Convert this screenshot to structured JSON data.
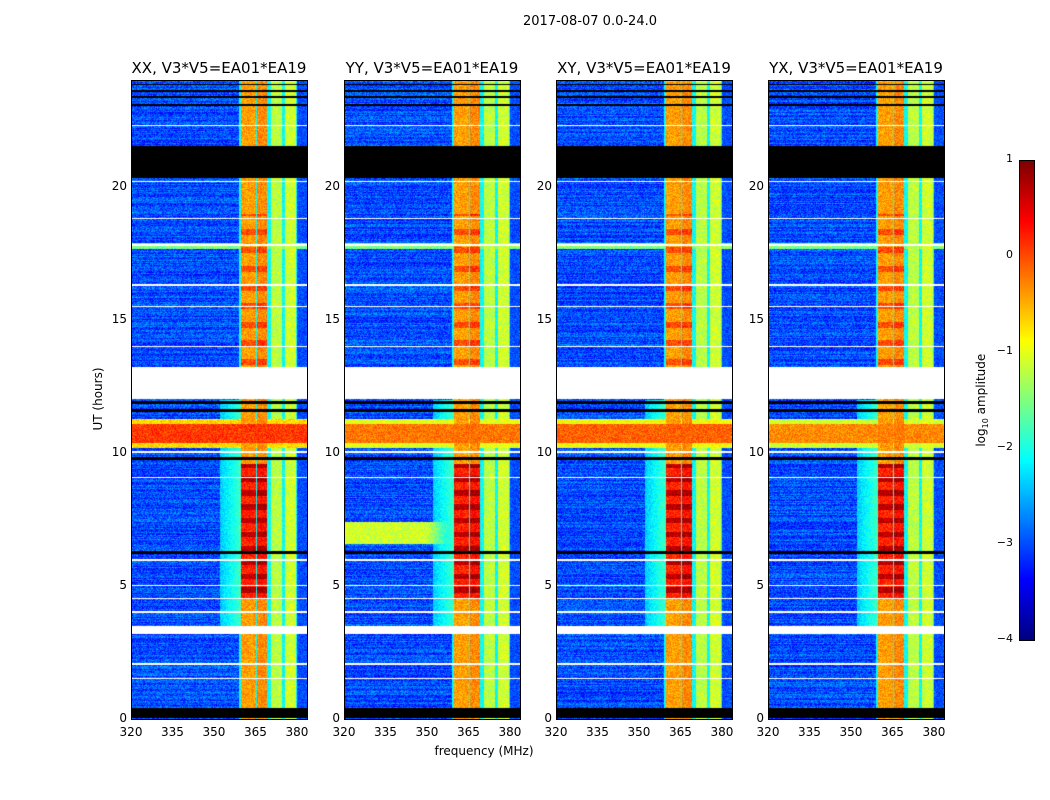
{
  "chart_data": {
    "type": "heatmap",
    "title": "2017-08-07 0.0-24.0",
    "xlabel": "frequency (MHz)",
    "ylabel": "UT (hours)",
    "xlim": [
      320,
      384
    ],
    "ylim": [
      0,
      24
    ],
    "xticks": [
      "320",
      "335",
      "350",
      "365",
      "380"
    ],
    "xtick_values": [
      320,
      335,
      350,
      365,
      380
    ],
    "yticks": [
      "0",
      "5",
      "10",
      "15",
      "20"
    ],
    "ytick_values": [
      0,
      5,
      10,
      15,
      20
    ],
    "colormap": "jet",
    "colorbar": {
      "label": "log10 amplitude",
      "label_main": "log",
      "label_sub": "10",
      "label_rest": " amplitude",
      "range": [
        -4,
        1
      ],
      "ticks": [
        "1",
        "0",
        "−1",
        "−2",
        "−3",
        "−4"
      ],
      "tick_values": [
        1,
        0,
        -1,
        -2,
        -3,
        -4
      ]
    },
    "panels": [
      {
        "title": "XX, V3*V5=EA01*EA19",
        "rfi_strength": 0.7,
        "yy_band": false
      },
      {
        "title": "YY, V3*V5=EA01*EA19",
        "rfi_strength": 0.4,
        "yy_band": true
      },
      {
        "title": "XY, V3*V5=EA01*EA19",
        "rfi_strength": 0.5,
        "yy_band": false
      },
      {
        "title": "YX, V3*V5=EA01*EA19",
        "rfi_strength": 0.3,
        "yy_band": false
      }
    ],
    "background_level": -3.0,
    "bright_bands_mhz": [
      {
        "range": [
          360.0,
          365.4
        ],
        "level": -0.4
      },
      {
        "range": [
          365.8,
          369.5
        ],
        "level": -0.3
      },
      {
        "range": [
          370.9,
          374.9
        ],
        "level": -1.2
      },
      {
        "range": [
          376.0,
          380.0
        ],
        "level": -1.1
      }
    ],
    "flagged_hours_black": [
      [
        0.05,
        0.4
      ],
      [
        6.2,
        6.32
      ],
      [
        9.75,
        9.85
      ],
      [
        11.55,
        11.65
      ],
      [
        11.85,
        11.95
      ],
      [
        20.35,
        21.55
      ],
      [
        23.05,
        23.12
      ],
      [
        23.35,
        23.42
      ],
      [
        23.6,
        23.66
      ],
      [
        23.85,
        23.9
      ]
    ],
    "gaps_hours_white": [
      [
        3.2,
        3.5
      ],
      [
        12.05,
        13.25
      ],
      [
        1.5,
        1.55
      ],
      [
        2.05,
        2.1
      ],
      [
        4.0,
        4.07
      ],
      [
        4.5,
        4.55
      ],
      [
        5.0,
        5.04
      ],
      [
        5.95,
        6.0
      ],
      [
        9.05,
        9.1
      ],
      [
        10.0,
        10.1
      ],
      [
        14.0,
        14.05
      ],
      [
        15.5,
        15.55
      ],
      [
        16.3,
        16.35
      ],
      [
        17.8,
        17.85
      ],
      [
        18.8,
        18.85
      ],
      [
        20.2,
        20.25
      ],
      [
        22.3,
        22.35
      ],
      [
        20.95,
        21.0
      ]
    ],
    "rfi_hours": [
      10.2,
      11.3
    ]
  }
}
